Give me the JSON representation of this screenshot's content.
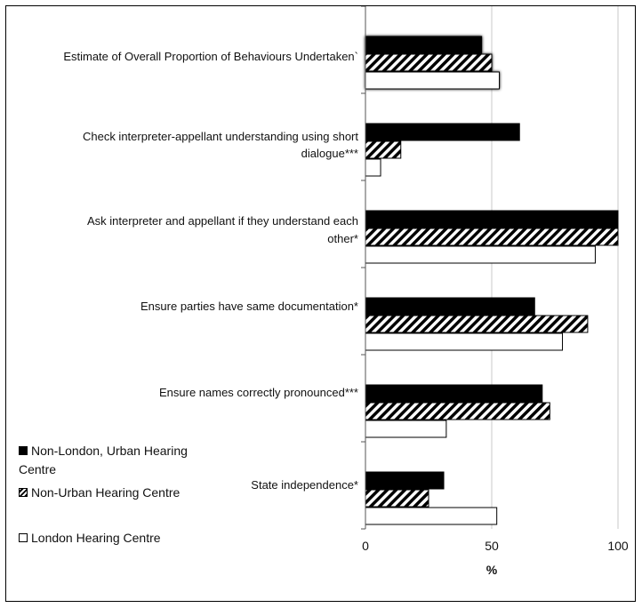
{
  "chart_data": {
    "type": "bar",
    "orientation": "horizontal",
    "categories": [
      "Estimate of Overall Proportion of Behaviours Undertaken`",
      "Check interpreter-appellant understanding using short dialogue***",
      "Ask interpreter and appellant if they understand each other*",
      "Ensure parties have same documentation*",
      "Ensure names correctly pronounced***",
      "State independence*"
    ],
    "series": [
      {
        "name": "Non-London, Urban Hearing Centre",
        "fill": "solid-black",
        "values": [
          46,
          61,
          100,
          67,
          70,
          31
        ]
      },
      {
        "name": "Non-Urban Hearing Centre",
        "fill": "diagonal-hatch",
        "values": [
          50,
          14,
          100,
          88,
          73,
          25
        ]
      },
      {
        "name": "London Hearing Centre",
        "fill": "white",
        "values": [
          53,
          6,
          91,
          78,
          32,
          52
        ]
      }
    ],
    "xlabel": "%",
    "xlim": [
      0,
      100
    ],
    "xticks": [
      "0",
      "50",
      "100"
    ],
    "grid": "vertical",
    "legend_position": "bottom-left",
    "colors": {
      "solid": "#000000",
      "hatch": "#000000",
      "white": "#ffffff",
      "grid": "#c8c8c8"
    }
  },
  "legend": {
    "items": [
      {
        "label": "Non-London, Urban Hearing Centre"
      },
      {
        "label": "Non-Urban Hearing Centre"
      },
      {
        "label": "London Hearing Centre"
      }
    ]
  }
}
